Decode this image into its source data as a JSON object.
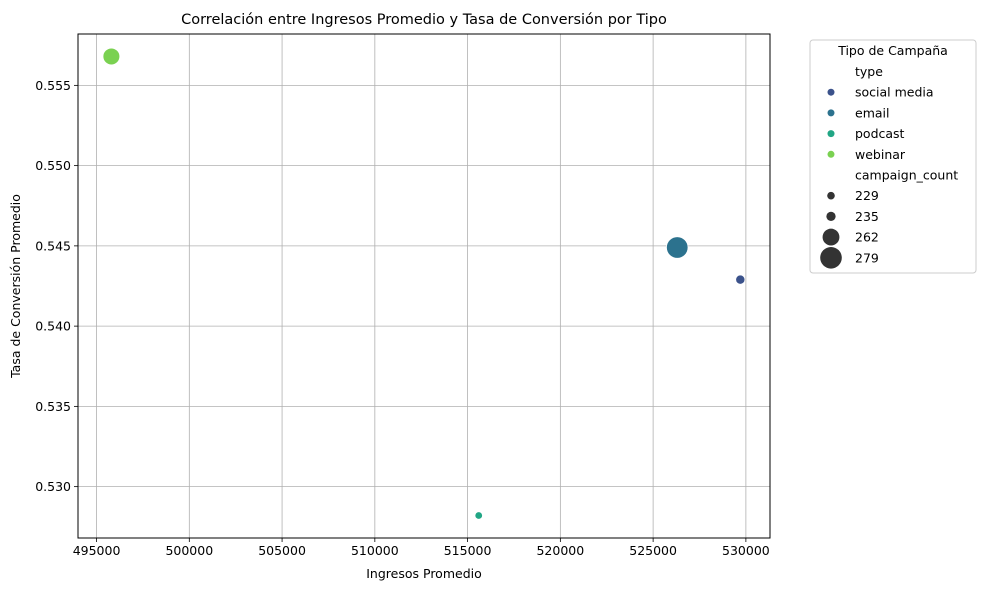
{
  "chart_data": {
    "type": "scatter",
    "title": "Correlación entre Ingresos Promedio y Tasa de Conversión por Tipo",
    "xlabel": "Ingresos Promedio",
    "ylabel": "Tasa de Conversión Promedio",
    "xlim": [
      494000,
      531300
    ],
    "ylim": [
      0.5268,
      0.5582
    ],
    "xticks": [
      495000,
      500000,
      505000,
      510000,
      515000,
      520000,
      525000,
      530000
    ],
    "xtick_labels": [
      "495000",
      "500000",
      "505000",
      "510000",
      "515000",
      "520000",
      "525000",
      "530000"
    ],
    "yticks": [
      0.53,
      0.535,
      0.54,
      0.545,
      0.55,
      0.555
    ],
    "ytick_labels": [
      "0.530",
      "0.535",
      "0.540",
      "0.545",
      "0.550",
      "0.555"
    ],
    "grid": true,
    "legend_placement": "outside-top-right",
    "points": [
      {
        "type": "social media",
        "x": 529700,
        "y": 0.5429,
        "campaign_count": 235,
        "color": "#3b528b"
      },
      {
        "type": "email",
        "x": 526300,
        "y": 0.5449,
        "campaign_count": 279,
        "color": "#2c728e"
      },
      {
        "type": "podcast",
        "x": 515600,
        "y": 0.5282,
        "campaign_count": 229,
        "color": "#21a685"
      },
      {
        "type": "webinar",
        "x": 495800,
        "y": 0.5568,
        "campaign_count": 262,
        "color": "#7ad151"
      }
    ],
    "legend": {
      "title": "Tipo de Campaña",
      "hue_title": "type",
      "hue_entries": [
        {
          "label": "social media",
          "color": "#3b528b"
        },
        {
          "label": "email",
          "color": "#2c728e"
        },
        {
          "label": "podcast",
          "color": "#21a685"
        },
        {
          "label": "webinar",
          "color": "#7ad151"
        }
      ],
      "size_title": "campaign_count",
      "size_entries": [
        {
          "label": "229",
          "value": 229
        },
        {
          "label": "235",
          "value": 235
        },
        {
          "label": "262",
          "value": 262
        },
        {
          "label": "279",
          "value": 279
        }
      ]
    }
  }
}
